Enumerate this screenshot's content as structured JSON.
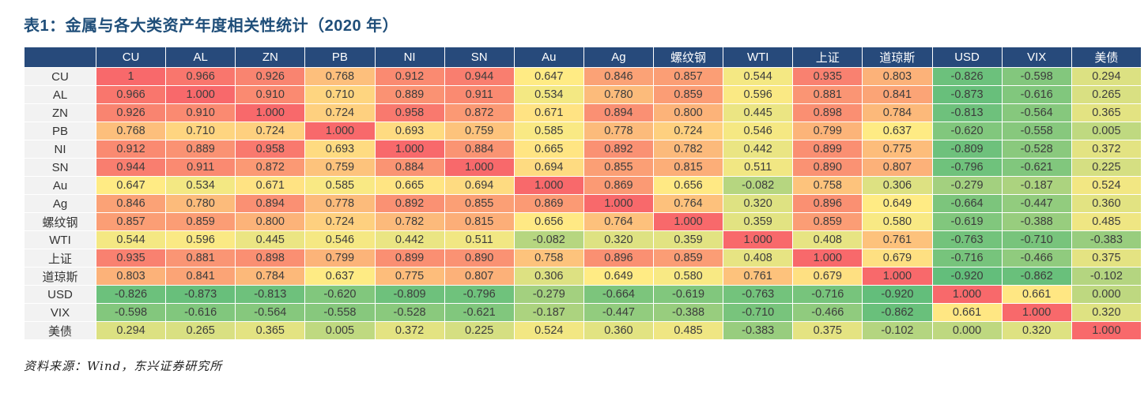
{
  "title": "表1：金属与各大类资产年度相关性统计（2020 年）",
  "source": "资料来源：Wind，东兴证券研究所",
  "colors": {
    "title": "#1F4E79",
    "header_bg": "#274A7B",
    "label_col_bg": "#F2F2F2",
    "scale_green_min": "#63BE7B",
    "scale_yellow_mid": "#FFEB84",
    "scale_red_max": "#F8696B"
  },
  "chart_data": {
    "type": "heatmap",
    "title": "金属与各大类资产年度相关性统计（2020 年）",
    "legend": "none",
    "grid": "white 1px cell borders",
    "color_scale": {
      "min": -0.92,
      "mid": 0.65,
      "max": 1.0,
      "low": "green",
      "middle": "yellow",
      "high": "red"
    },
    "columns": [
      "CU",
      "AL",
      "ZN",
      "PB",
      "NI",
      "SN",
      "Au",
      "Ag",
      "螺纹钢",
      "WTI",
      "上证",
      "道琼斯",
      "USD",
      "VIX",
      "美债"
    ],
    "rows": [
      "CU",
      "AL",
      "ZN",
      "PB",
      "NI",
      "SN",
      "Au",
      "Ag",
      "螺纹钢",
      "WTI",
      "上证",
      "道琼斯",
      "USD",
      "VIX",
      "美债"
    ],
    "values": [
      [
        "1",
        "0.966",
        "0.926",
        "0.768",
        "0.912",
        "0.944",
        "0.647",
        "0.846",
        "0.857",
        "0.544",
        "0.935",
        "0.803",
        "-0.826",
        "-0.598",
        "0.294"
      ],
      [
        "0.966",
        "1.000",
        "0.910",
        "0.710",
        "0.889",
        "0.911",
        "0.534",
        "0.780",
        "0.859",
        "0.596",
        "0.881",
        "0.841",
        "-0.873",
        "-0.616",
        "0.265"
      ],
      [
        "0.926",
        "0.910",
        "1.000",
        "0.724",
        "0.958",
        "0.872",
        "0.671",
        "0.894",
        "0.800",
        "0.445",
        "0.898",
        "0.784",
        "-0.813",
        "-0.564",
        "0.365"
      ],
      [
        "0.768",
        "0.710",
        "0.724",
        "1.000",
        "0.693",
        "0.759",
        "0.585",
        "0.778",
        "0.724",
        "0.546",
        "0.799",
        "0.637",
        "-0.620",
        "-0.558",
        "0.005"
      ],
      [
        "0.912",
        "0.889",
        "0.958",
        "0.693",
        "1.000",
        "0.884",
        "0.665",
        "0.892",
        "0.782",
        "0.442",
        "0.899",
        "0.775",
        "-0.809",
        "-0.528",
        "0.372"
      ],
      [
        "0.944",
        "0.911",
        "0.872",
        "0.759",
        "0.884",
        "1.000",
        "0.694",
        "0.855",
        "0.815",
        "0.511",
        "0.890",
        "0.807",
        "-0.796",
        "-0.621",
        "0.225"
      ],
      [
        "0.647",
        "0.534",
        "0.671",
        "0.585",
        "0.665",
        "0.694",
        "1.000",
        "0.869",
        "0.656",
        "-0.082",
        "0.758",
        "0.306",
        "-0.279",
        "-0.187",
        "0.524"
      ],
      [
        "0.846",
        "0.780",
        "0.894",
        "0.778",
        "0.892",
        "0.855",
        "0.869",
        "1.000",
        "0.764",
        "0.320",
        "0.896",
        "0.649",
        "-0.664",
        "-0.447",
        "0.360"
      ],
      [
        "0.857",
        "0.859",
        "0.800",
        "0.724",
        "0.782",
        "0.815",
        "0.656",
        "0.764",
        "1.000",
        "0.359",
        "0.859",
        "0.580",
        "-0.619",
        "-0.388",
        "0.485"
      ],
      [
        "0.544",
        "0.596",
        "0.445",
        "0.546",
        "0.442",
        "0.511",
        "-0.082",
        "0.320",
        "0.359",
        "1.000",
        "0.408",
        "0.761",
        "-0.763",
        "-0.710",
        "-0.383"
      ],
      [
        "0.935",
        "0.881",
        "0.898",
        "0.799",
        "0.899",
        "0.890",
        "0.758",
        "0.896",
        "0.859",
        "0.408",
        "1.000",
        "0.679",
        "-0.716",
        "-0.466",
        "0.375"
      ],
      [
        "0.803",
        "0.841",
        "0.784",
        "0.637",
        "0.775",
        "0.807",
        "0.306",
        "0.649",
        "0.580",
        "0.761",
        "0.679",
        "1.000",
        "-0.920",
        "-0.862",
        "-0.102"
      ],
      [
        "-0.826",
        "-0.873",
        "-0.813",
        "-0.620",
        "-0.809",
        "-0.796",
        "-0.279",
        "-0.664",
        "-0.619",
        "-0.763",
        "-0.716",
        "-0.920",
        "1.000",
        "0.661",
        "0.000"
      ],
      [
        "-0.598",
        "-0.616",
        "-0.564",
        "-0.558",
        "-0.528",
        "-0.621",
        "-0.187",
        "-0.447",
        "-0.388",
        "-0.710",
        "-0.466",
        "-0.862",
        "0.661",
        "1.000",
        "0.320"
      ],
      [
        "0.294",
        "0.265",
        "0.365",
        "0.005",
        "0.372",
        "0.225",
        "0.524",
        "0.360",
        "0.485",
        "-0.383",
        "0.375",
        "-0.102",
        "0.000",
        "0.320",
        "1.000"
      ]
    ]
  }
}
